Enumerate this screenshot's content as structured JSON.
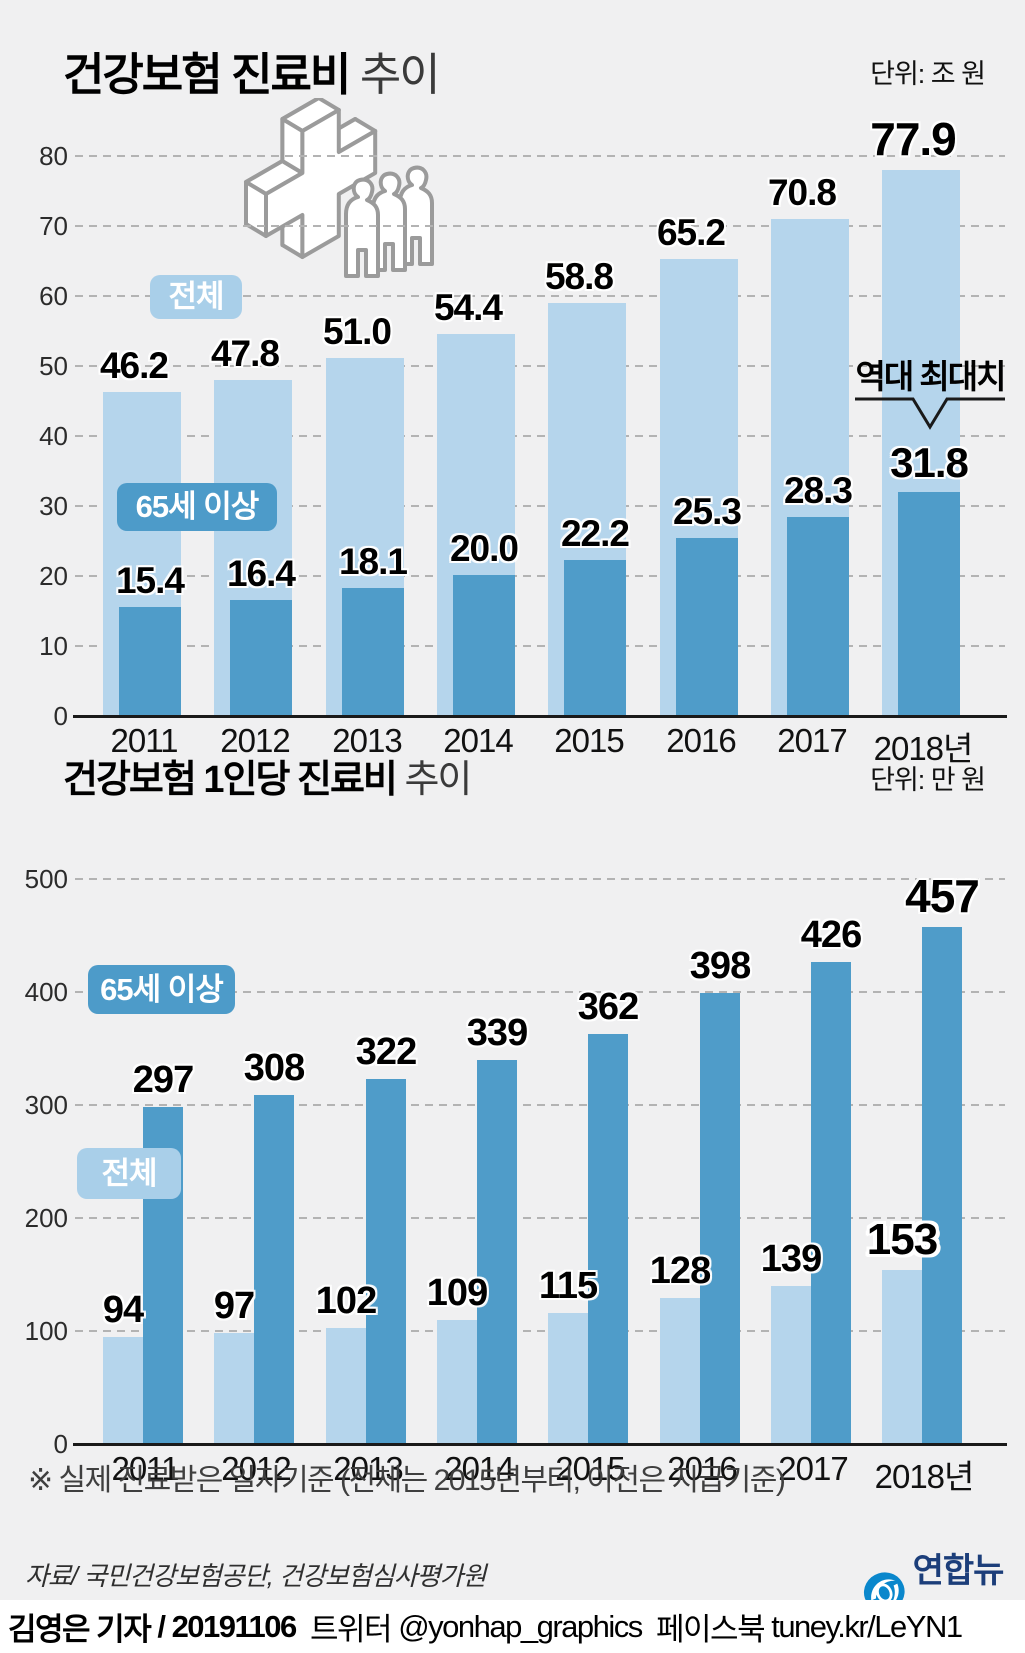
{
  "colors": {
    "background": "#f0f0f1",
    "bar_light": "#b5d5ec",
    "bar_dark": "#4f9cc9",
    "bubble_light": "#a9cfe9",
    "bubble_dark": "#4d9bc9",
    "logo_blue": "#0a87cc",
    "logo_navy": "#1c3e7a"
  },
  "header1": {
    "title_main": "건강보험 진료비",
    "title_sub": " 추이",
    "unit": "단위: 조 원"
  },
  "header2": {
    "title_main": "건강보험 1인당 진료비",
    "title_sub": " 추이",
    "unit": "단위: 만 원"
  },
  "chart_data": [
    {
      "type": "bar",
      "title": "건강보험 진료비 추이",
      "unit": "조 원",
      "categories": [
        "2011",
        "2012",
        "2013",
        "2014",
        "2015",
        "2016",
        "2017",
        "2018년"
      ],
      "series": [
        {
          "name": "전체",
          "values": [
            46.2,
            47.8,
            51.0,
            54.4,
            58.8,
            65.2,
            70.8,
            77.9
          ]
        },
        {
          "name": "65세 이상",
          "values": [
            15.4,
            16.4,
            18.1,
            20.0,
            22.2,
            25.3,
            28.3,
            31.8
          ]
        }
      ],
      "ylim": [
        0,
        80
      ],
      "ytick_step": 10,
      "grid": true,
      "legend_position": "in-plot bubbles",
      "decimals": 1,
      "emphasized_index": 7,
      "annotation": "역대 최대치"
    },
    {
      "type": "bar",
      "title": "건강보험 1인당 진료비 추이",
      "unit": "만 원",
      "categories": [
        "2011",
        "2012",
        "2013",
        "2014",
        "2015",
        "2016",
        "2017",
        "2018년"
      ],
      "series": [
        {
          "name": "전체",
          "values": [
            94,
            97,
            102,
            109,
            115,
            128,
            139,
            153
          ]
        },
        {
          "name": "65세 이상",
          "values": [
            297,
            308,
            322,
            339,
            362,
            398,
            426,
            457
          ]
        }
      ],
      "ylim": [
        0,
        500
      ],
      "ytick_step": 100,
      "grid": true,
      "legend_position": "in-plot bubbles",
      "decimals": 0,
      "emphasized_index": 7
    }
  ],
  "bubbles": {
    "chart1_total": "전체",
    "chart1_senior": "65세 이상",
    "chart2_total": "전체",
    "chart2_senior": "65세 이상"
  },
  "annotation": {
    "record_high": "역대 최대치"
  },
  "footer": {
    "note": "※ 실제 진료받은 일자기준 (전체는 2015년부터, 이전은 지급기준)",
    "source": "자료/ 국민건강보험공단, 건강보험심사평가원",
    "logo_text": "연합뉴스"
  },
  "credit": {
    "reporter": "김영은 기자",
    "separator": " / ",
    "date": "20191106",
    "twitter_label": "  트위터 ",
    "twitter_handle": "@yonhap_graphics",
    "facebook_label": "  페이스북 ",
    "facebook_url": "tuney.kr/LeYN1"
  }
}
